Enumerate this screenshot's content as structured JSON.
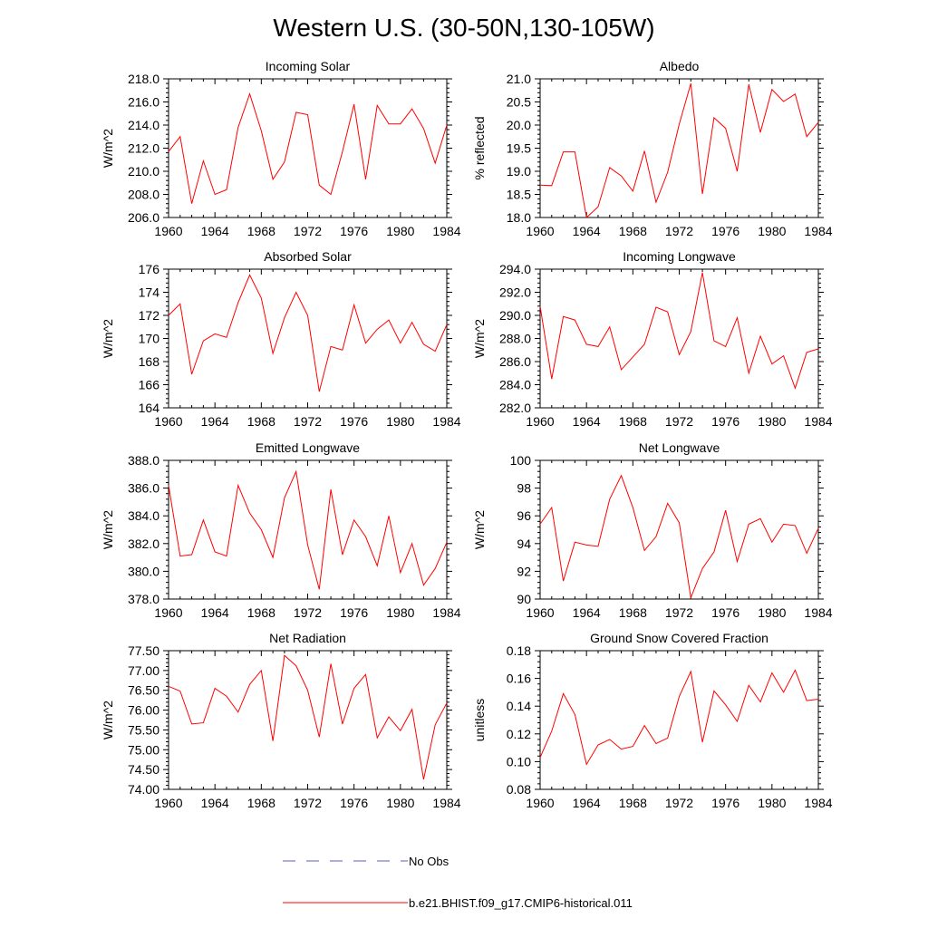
{
  "figure": {
    "title": "Western U.S. (30-50N,130-105W)"
  },
  "legend": {
    "entries": [
      {
        "label": "No Obs",
        "color": "#5b5bbd",
        "style": "dashed"
      },
      {
        "label": "b.e21.BHIST.f09_g17.CMIP6-historical.011",
        "color": "#ff0000",
        "style": "solid"
      }
    ]
  },
  "chart_data": [
    {
      "type": "line",
      "title": "Incoming Solar",
      "ylabel": "W/m^2",
      "ylim": [
        206.0,
        218.0
      ],
      "yticks": [
        "206.0",
        "208.0",
        "210.0",
        "212.0",
        "214.0",
        "216.0",
        "218.0"
      ],
      "xlim": [
        1960,
        1984
      ],
      "xticks": [
        "1960",
        "1964",
        "1968",
        "1972",
        "1976",
        "1980",
        "1984"
      ],
      "series": [
        {
          "color": "#ff0000",
          "x": [
            1960,
            1961,
            1962,
            1963,
            1964,
            1965,
            1966,
            1967,
            1968,
            1969,
            1970,
            1971,
            1972,
            1973,
            1974,
            1975,
            1976,
            1977,
            1978,
            1979,
            1980,
            1981,
            1982,
            1983,
            1984
          ],
          "values": [
            211.7,
            213.0,
            207.2,
            210.9,
            208.0,
            208.4,
            213.8,
            216.7,
            213.5,
            209.3,
            210.8,
            215.1,
            214.9,
            208.8,
            208.0,
            211.7,
            215.8,
            209.3,
            215.7,
            214.1,
            214.1,
            215.4,
            213.7,
            210.7,
            214.0
          ]
        }
      ]
    },
    {
      "type": "line",
      "title": "Albedo",
      "ylabel": "% reflected",
      "ylim": [
        18.0,
        21.0
      ],
      "yticks": [
        "18.0",
        "18.5",
        "19.0",
        "19.5",
        "20.0",
        "20.5",
        "21.0"
      ],
      "xlim": [
        1960,
        1984
      ],
      "xticks": [
        "1960",
        "1964",
        "1968",
        "1972",
        "1976",
        "1980",
        "1984"
      ],
      "series": [
        {
          "color": "#ff0000",
          "x": [
            1960,
            1961,
            1962,
            1963,
            1964,
            1965,
            1966,
            1967,
            1968,
            1969,
            1970,
            1971,
            1972,
            1973,
            1974,
            1975,
            1976,
            1977,
            1978,
            1979,
            1980,
            1981,
            1982,
            1983,
            1984
          ],
          "values": [
            18.7,
            18.69,
            19.42,
            19.42,
            18.0,
            18.23,
            19.08,
            18.9,
            18.57,
            19.44,
            18.33,
            18.98,
            20.02,
            20.9,
            18.51,
            20.16,
            19.93,
            19.0,
            20.88,
            19.84,
            20.77,
            20.51,
            20.67,
            19.75,
            20.06
          ]
        }
      ]
    },
    {
      "type": "line",
      "title": "Absorbed Solar",
      "ylabel": "W/m^2",
      "ylim": [
        164,
        176
      ],
      "yticks": [
        "164",
        "166",
        "168",
        "170",
        "172",
        "174",
        "176"
      ],
      "xlim": [
        1960,
        1984
      ],
      "xticks": [
        "1960",
        "1964",
        "1968",
        "1972",
        "1976",
        "1980",
        "1984"
      ],
      "series": [
        {
          "color": "#ff0000",
          "x": [
            1960,
            1961,
            1962,
            1963,
            1964,
            1965,
            1966,
            1967,
            1968,
            1969,
            1970,
            1971,
            1972,
            1973,
            1974,
            1975,
            1976,
            1977,
            1978,
            1979,
            1980,
            1981,
            1982,
            1983,
            1984
          ],
          "values": [
            172.0,
            173.0,
            166.9,
            169.8,
            170.4,
            170.1,
            173.1,
            175.5,
            173.5,
            168.7,
            171.8,
            174.0,
            172.0,
            165.4,
            169.3,
            169.0,
            172.9,
            169.6,
            170.8,
            171.6,
            169.6,
            171.4,
            169.5,
            168.9,
            171.2
          ]
        }
      ]
    },
    {
      "type": "line",
      "title": "Incoming Longwave",
      "ylabel": "W/m^2",
      "ylim": [
        282.0,
        294.0
      ],
      "yticks": [
        "282.0",
        "284.0",
        "286.0",
        "288.0",
        "290.0",
        "292.0",
        "294.0"
      ],
      "xlim": [
        1960,
        1984
      ],
      "xticks": [
        "1960",
        "1964",
        "1968",
        "1972",
        "1976",
        "1980",
        "1984"
      ],
      "series": [
        {
          "color": "#ff0000",
          "x": [
            1960,
            1961,
            1962,
            1963,
            1964,
            1965,
            1966,
            1967,
            1968,
            1969,
            1970,
            1971,
            1972,
            1973,
            1974,
            1975,
            1976,
            1977,
            1978,
            1979,
            1980,
            1981,
            1982,
            1983,
            1984
          ],
          "values": [
            290.8,
            284.5,
            289.9,
            289.6,
            287.5,
            287.3,
            289.0,
            285.3,
            286.4,
            287.5,
            290.7,
            290.3,
            286.6,
            288.6,
            293.7,
            287.8,
            287.3,
            289.8,
            285.0,
            288.2,
            285.8,
            286.5,
            283.7,
            286.8,
            287.1
          ]
        }
      ]
    },
    {
      "type": "line",
      "title": "Emitted Longwave",
      "ylabel": "W/m^2",
      "ylim": [
        378.0,
        388.0
      ],
      "yticks": [
        "378.0",
        "380.0",
        "382.0",
        "384.0",
        "386.0",
        "388.0"
      ],
      "xlim": [
        1960,
        1984
      ],
      "xticks": [
        "1960",
        "1964",
        "1968",
        "1972",
        "1976",
        "1980",
        "1984"
      ],
      "series": [
        {
          "color": "#ff0000",
          "x": [
            1960,
            1961,
            1962,
            1963,
            1964,
            1965,
            1966,
            1967,
            1968,
            1969,
            1970,
            1971,
            1972,
            1973,
            1974,
            1975,
            1976,
            1977,
            1978,
            1979,
            1980,
            1981,
            1982,
            1983,
            1984
          ],
          "values": [
            386.2,
            381.1,
            381.2,
            383.7,
            381.4,
            381.1,
            386.2,
            384.2,
            383.0,
            381.0,
            385.3,
            387.2,
            381.9,
            378.7,
            385.9,
            381.2,
            383.7,
            382.5,
            380.4,
            384.0,
            379.9,
            382.0,
            379.0,
            380.2,
            382.1
          ]
        }
      ]
    },
    {
      "type": "line",
      "title": "Net Longwave",
      "ylabel": "W/m^2",
      "ylim": [
        90,
        100
      ],
      "yticks": [
        "90",
        "92",
        "94",
        "96",
        "98",
        "100"
      ],
      "xlim": [
        1960,
        1984
      ],
      "xticks": [
        "1960",
        "1964",
        "1968",
        "1972",
        "1976",
        "1980",
        "1984"
      ],
      "series": [
        {
          "color": "#ff0000",
          "x": [
            1960,
            1961,
            1962,
            1963,
            1964,
            1965,
            1966,
            1967,
            1968,
            1969,
            1970,
            1971,
            1972,
            1973,
            1974,
            1975,
            1976,
            1977,
            1978,
            1979,
            1980,
            1981,
            1982,
            1983,
            1984
          ],
          "values": [
            95.4,
            96.6,
            91.3,
            94.1,
            93.9,
            93.8,
            97.2,
            98.9,
            96.6,
            93.5,
            94.5,
            96.9,
            95.5,
            90.1,
            92.2,
            93.4,
            96.4,
            92.7,
            95.4,
            95.8,
            94.1,
            95.4,
            95.3,
            93.3,
            95.1
          ]
        }
      ]
    },
    {
      "type": "line",
      "title": "Net Radiation",
      "ylabel": "W/m^2",
      "ylim": [
        74.0,
        77.5
      ],
      "yticks": [
        "74.00",
        "74.50",
        "75.00",
        "75.50",
        "76.00",
        "76.50",
        "77.00",
        "77.50"
      ],
      "xlim": [
        1960,
        1984
      ],
      "xticks": [
        "1960",
        "1964",
        "1968",
        "1972",
        "1976",
        "1980",
        "1984"
      ],
      "series": [
        {
          "color": "#ff0000",
          "x": [
            1960,
            1961,
            1962,
            1963,
            1964,
            1965,
            1966,
            1967,
            1968,
            1969,
            1970,
            1971,
            1972,
            1973,
            1974,
            1975,
            1976,
            1977,
            1978,
            1979,
            1980,
            1981,
            1982,
            1983,
            1984
          ],
          "values": [
            76.6,
            76.48,
            75.65,
            75.68,
            76.55,
            76.35,
            75.95,
            76.65,
            77.0,
            75.22,
            77.38,
            77.12,
            76.5,
            75.32,
            77.17,
            75.65,
            76.55,
            76.9,
            75.3,
            75.83,
            75.48,
            76.02,
            74.25,
            75.63,
            76.18
          ]
        }
      ]
    },
    {
      "type": "line",
      "title": "Ground Snow Covered Fraction",
      "ylabel": "unitless",
      "ylim": [
        0.08,
        0.18
      ],
      "yticks": [
        "0.08",
        "0.10",
        "0.12",
        "0.14",
        "0.16",
        "0.18"
      ],
      "xlim": [
        1960,
        1984
      ],
      "xticks": [
        "1960",
        "1964",
        "1968",
        "1972",
        "1976",
        "1980",
        "1984"
      ],
      "series": [
        {
          "color": "#ff0000",
          "x": [
            1960,
            1961,
            1962,
            1963,
            1964,
            1965,
            1966,
            1967,
            1968,
            1969,
            1970,
            1971,
            1972,
            1973,
            1974,
            1975,
            1976,
            1977,
            1978,
            1979,
            1980,
            1981,
            1982,
            1983,
            1984
          ],
          "values": [
            0.103,
            0.122,
            0.149,
            0.134,
            0.098,
            0.112,
            0.116,
            0.109,
            0.111,
            0.126,
            0.113,
            0.117,
            0.147,
            0.165,
            0.114,
            0.151,
            0.141,
            0.129,
            0.155,
            0.143,
            0.164,
            0.15,
            0.166,
            0.144,
            0.145
          ]
        }
      ]
    }
  ]
}
